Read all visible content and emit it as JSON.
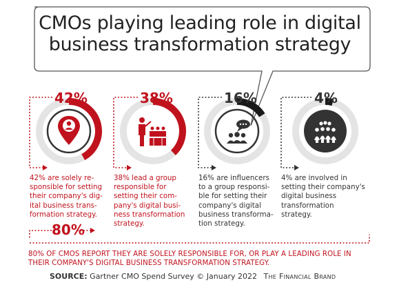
{
  "chart_data": {
    "type": "gauge",
    "title": "CMOs playing leading role in digital business transformation strategy",
    "title_lines": [
      "CMOs playing leading role in digital",
      "business transformation strategy"
    ],
    "items": [
      {
        "value_label": "42%",
        "value": 42,
        "color": "#c0121d",
        "icon": "person-location-pin-icon",
        "description": [
          "42% are solely re-",
          "sponsible for setting",
          "their company's dig-",
          "ital business trans-",
          "formation strategy."
        ]
      },
      {
        "value_label": "38%",
        "value": 38,
        "color": "#c0121d",
        "icon": "presenter-group-icon",
        "description": [
          "38% lead a group",
          "responsible for",
          "setting their com-",
          "pany's digital busi-",
          "ness transformation",
          "strategy."
        ]
      },
      {
        "value_label": "16%",
        "value": 16,
        "color": "#1a1a1a",
        "icon": "speech-bubble-group-icon",
        "description": [
          "16% are influencers",
          "to a group responsi-",
          "ble for setting their",
          "company's digital",
          "business transforma-",
          "tion strategy."
        ]
      },
      {
        "value_label": "4%",
        "value": 4,
        "color": "#1a1a1a",
        "icon": "crowd-icon",
        "description": [
          "4% are involved in",
          "setting their company's",
          "digital business",
          "transformation",
          "strategy."
        ]
      }
    ],
    "combined": {
      "value_label": "80%",
      "value": 80,
      "summary": [
        "80% OF CMOS REPORT THEY ARE SOLELY RESPONSIBLE FOR, OR PLAY A LEADING ROLE IN",
        "THEIR COMPANY'S DIGITAL BUSINESS TRANSFORMATION STRATEGY."
      ]
    }
  },
  "footer": {
    "source_label": "SOURCE:",
    "source_text": "Gartner CMO Spend Survey © January 2022",
    "brand": "The Financial Brand"
  },
  "colors": {
    "accent": "#c0121d",
    "dark": "#1a1a1a",
    "text": "#333333"
  }
}
